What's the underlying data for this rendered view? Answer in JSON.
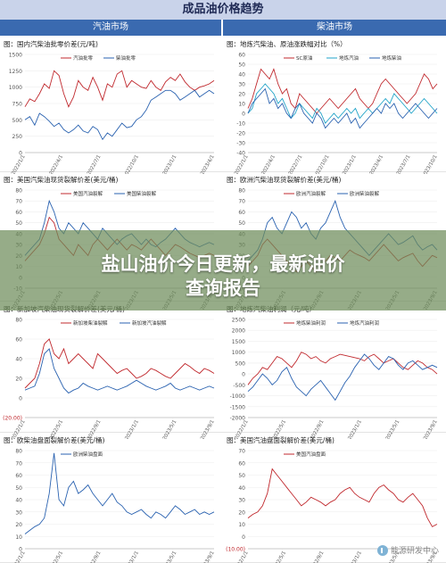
{
  "page": {
    "main_title": "成品油价格趋势",
    "left_header": "汽油市场",
    "right_header": "柴油市场",
    "banner_line1": "盐山油价今日更新，最新油价",
    "banner_line2": "查询报告",
    "watermark": "能源研发中心"
  },
  "chart_data": [
    {
      "id": "c1",
      "type": "line",
      "title": "图：国内汽柴油批零价差(元/吨)",
      "x_ticks": [
        "2022/1/1",
        "2022/4/1",
        "2022/7/1",
        "2022/10/1",
        "2023/1/1",
        "2023/4/1"
      ],
      "ylim": [
        0,
        1500
      ],
      "y_ticks": [
        0,
        250,
        500,
        750,
        1000,
        1250,
        1500
      ],
      "series": [
        {
          "name": "汽油批零",
          "color": "#c0282d",
          "values": [
            700,
            820,
            780,
            900,
            1050,
            980,
            1250,
            1180,
            900,
            700,
            850,
            1100,
            1000,
            950,
            1150,
            1000,
            800,
            1050,
            1000,
            1200,
            1250,
            1000,
            1100,
            1050,
            1000,
            980,
            1100,
            1000,
            950,
            1080,
            1150,
            1100,
            1200,
            1080,
            1000,
            950,
            1000,
            1020,
            1050,
            1100
          ]
        },
        {
          "name": "柴油批零",
          "color": "#2a62b0",
          "values": [
            500,
            550,
            420,
            600,
            550,
            480,
            400,
            450,
            350,
            300,
            350,
            420,
            330,
            300,
            400,
            350,
            200,
            300,
            250,
            350,
            450,
            380,
            400,
            500,
            550,
            650,
            800,
            850,
            900,
            950,
            950,
            900,
            800,
            850,
            900,
            950,
            850,
            900,
            950,
            900
          ]
        }
      ]
    },
    {
      "id": "c2",
      "type": "line",
      "title": "图：地炼汽柴油、原油涨跌幅对比（%）",
      "x_ticks": [
        "2022/1/1",
        "2022/4/1",
        "2022/7/1",
        "2022/10/1",
        "2023/1/1",
        "2023/4/1",
        "2023/7/1",
        "2023/10/1"
      ],
      "ylim": [
        -40,
        60
      ],
      "y_ticks": [
        60,
        50,
        40,
        30,
        20,
        10,
        0,
        -10,
        -20,
        -30,
        -40
      ],
      "series": [
        {
          "name": "SC原油",
          "color": "#c0282d",
          "values": [
            5,
            15,
            30,
            45,
            40,
            35,
            45,
            30,
            20,
            25,
            10,
            5,
            20,
            15,
            10,
            5,
            0,
            5,
            10,
            15,
            10,
            5,
            10,
            15,
            20,
            25,
            15,
            10,
            5,
            10,
            20,
            30,
            35,
            30,
            25,
            20,
            15,
            10,
            15,
            20,
            30,
            40,
            35,
            25,
            30
          ]
        },
        {
          "name": "地炼汽油",
          "color": "#1fa3c8",
          "values": [
            0,
            5,
            20,
            25,
            30,
            25,
            20,
            10,
            15,
            5,
            -5,
            0,
            10,
            5,
            0,
            -5,
            5,
            0,
            -10,
            -5,
            0,
            -5,
            0,
            5,
            0,
            5,
            -5,
            0,
            5,
            0,
            5,
            10,
            15,
            10,
            20,
            15,
            10,
            5,
            0,
            5,
            10,
            15,
            10,
            5,
            0
          ]
        },
        {
          "name": "地炼柴油",
          "color": "#2a62b0",
          "values": [
            0,
            10,
            15,
            20,
            25,
            10,
            15,
            5,
            10,
            0,
            -5,
            5,
            10,
            0,
            -5,
            -10,
            0,
            -5,
            -15,
            -10,
            -5,
            -10,
            -5,
            0,
            -10,
            -5,
            -15,
            -10,
            -5,
            0,
            5,
            0,
            10,
            5,
            10,
            0,
            -5,
            0,
            5,
            10,
            5,
            0,
            -5,
            0,
            5
          ]
        }
      ]
    },
    {
      "id": "c3",
      "type": "line",
      "title": "图：美国汽柴油现货裂解价差(美元/桶)",
      "x_ticks": [
        "2022/1/1",
        "2022/5/1",
        "2022/9/1",
        "2023/1/1",
        "2023/5/1",
        "2023/9/1"
      ],
      "ylim": [
        -10,
        80
      ],
      "y_ticks": [
        80,
        70,
        60,
        50,
        40,
        30,
        20,
        10,
        0,
        -10
      ],
      "series": [
        {
          "name": "美国汽油裂解",
          "color": "#c0282d",
          "values": [
            15,
            20,
            25,
            30,
            40,
            55,
            50,
            35,
            30,
            25,
            20,
            30,
            25,
            20,
            30,
            35,
            30,
            25,
            30,
            35,
            30,
            25,
            30,
            28,
            25,
            30,
            35,
            30,
            25,
            20,
            25,
            30,
            28,
            25,
            22,
            20,
            18,
            20,
            22,
            20
          ]
        },
        {
          "name": "美国柴油裂解",
          "color": "#2a62b0",
          "values": [
            20,
            25,
            30,
            35,
            50,
            70,
            60,
            45,
            40,
            50,
            45,
            40,
            50,
            45,
            40,
            35,
            45,
            40,
            35,
            30,
            35,
            38,
            40,
            35,
            30,
            35,
            30,
            28,
            32,
            35,
            40,
            45,
            40,
            35,
            32,
            30,
            28,
            30,
            32,
            30
          ]
        }
      ]
    },
    {
      "id": "c4",
      "type": "line",
      "title": "图：欧洲汽柴油现货裂解价差(美元/桶)",
      "x_ticks": [
        "2022/1/1",
        "2022/5/1",
        "2022/9/1",
        "2023/1/1",
        "2023/5/1",
        "2023/9/1"
      ],
      "ylim": [
        -10,
        80
      ],
      "y_ticks": [
        80,
        70,
        60,
        50,
        40,
        30,
        20,
        10,
        0,
        -10
      ],
      "series": [
        {
          "name": "欧洲汽油裂解",
          "color": "#c0282d",
          "values": [
            10,
            15,
            20,
            30,
            35,
            30,
            25,
            20,
            15,
            10,
            5,
            10,
            15,
            10,
            5,
            10,
            15,
            20,
            18,
            15,
            20,
            25,
            22,
            20,
            18,
            15,
            20,
            25,
            30,
            25,
            20,
            15,
            18,
            20,
            22,
            15,
            10,
            15,
            20,
            18
          ]
        },
        {
          "name": "欧洲柴油裂解",
          "color": "#2a62b0",
          "values": [
            15,
            20,
            25,
            35,
            50,
            55,
            45,
            40,
            50,
            60,
            55,
            45,
            50,
            40,
            35,
            45,
            50,
            60,
            70,
            55,
            45,
            40,
            35,
            30,
            25,
            20,
            25,
            30,
            35,
            40,
            35,
            30,
            32,
            35,
            38,
            30,
            25,
            28,
            30,
            25
          ]
        }
      ]
    },
    {
      "id": "c5",
      "type": "line",
      "title": "图：新加坡汽柴油现货裂解价差(美元/桶)",
      "x_ticks": [
        "2022/1/1",
        "2022/5/1",
        "2022/9/1",
        "2023/1/1",
        "2023/5/1",
        "2023/9/1"
      ],
      "ylim": [
        -20,
        80
      ],
      "y_ticks": [
        80,
        60,
        40,
        20,
        0,
        "(20.00)"
      ],
      "series": [
        {
          "name": "新加坡柴油裂解",
          "color": "#c0282d",
          "values": [
            10,
            15,
            20,
            35,
            55,
            60,
            45,
            40,
            50,
            35,
            40,
            45,
            40,
            35,
            30,
            45,
            40,
            35,
            30,
            25,
            28,
            30,
            25,
            20,
            22,
            25,
            30,
            28,
            25,
            22,
            20,
            25,
            30,
            35,
            32,
            28,
            25,
            30,
            28,
            25
          ]
        },
        {
          "name": "新加坡汽油裂解",
          "color": "#2a62b0",
          "values": [
            8,
            10,
            12,
            25,
            45,
            50,
            30,
            20,
            10,
            5,
            8,
            10,
            15,
            12,
            10,
            8,
            10,
            12,
            10,
            8,
            10,
            12,
            15,
            18,
            15,
            12,
            10,
            8,
            10,
            12,
            15,
            10,
            8,
            10,
            12,
            10,
            8,
            10,
            12,
            10
          ]
        }
      ]
    },
    {
      "id": "c6",
      "type": "line",
      "title": "图：地炼汽柴油利润（元/吨）",
      "x_ticks": [
        "2022/1/1",
        "2022/5/1",
        "2022/9/1",
        "2023/1/1",
        "2023/5/1",
        "2023/9/1"
      ],
      "ylim": [
        -2000,
        2500
      ],
      "y_ticks": [
        2500,
        2000,
        1500,
        1000,
        500,
        0,
        -500,
        -1000,
        -1500,
        -2000
      ],
      "series": [
        {
          "name": "地炼柴油利润",
          "color": "#c0282d",
          "values": [
            -500,
            -200,
            0,
            300,
            200,
            500,
            800,
            700,
            500,
            300,
            600,
            1000,
            900,
            700,
            800,
            600,
            500,
            700,
            800,
            900,
            850,
            800,
            750,
            700,
            600,
            800,
            900,
            700,
            500,
            600,
            700,
            500,
            300,
            200,
            400,
            600,
            500,
            300,
            200,
            0
          ]
        },
        {
          "name": "地炼汽油利润",
          "color": "#2a62b0",
          "values": [
            -800,
            -600,
            -300,
            0,
            -200,
            -500,
            -300,
            100,
            300,
            -200,
            -600,
            -800,
            -1000,
            -700,
            -500,
            -300,
            -600,
            -900,
            -1200,
            -800,
            -400,
            -100,
            300,
            600,
            900,
            700,
            400,
            200,
            500,
            800,
            700,
            400,
            200,
            500,
            600,
            400,
            200,
            300,
            400,
            300
          ]
        }
      ]
    },
    {
      "id": "c7",
      "type": "line",
      "title": "图：欧柴油盘面裂解价差(美元/桶)",
      "x_ticks": [
        "2022/1/1",
        "2022/5/1",
        "2022/9/1",
        "2023/1/1",
        "2023/5/1",
        "2023/9/1"
      ],
      "ylim": [
        0,
        80
      ],
      "y_ticks": [
        80,
        70,
        60,
        50,
        40,
        30,
        20,
        10,
        0
      ],
      "series": [
        {
          "name": "欧洲柴油盘面",
          "color": "#2a62b0",
          "values": [
            12,
            15,
            18,
            20,
            25,
            45,
            78,
            40,
            35,
            50,
            55,
            45,
            48,
            52,
            45,
            40,
            35,
            40,
            45,
            38,
            35,
            30,
            28,
            30,
            32,
            28,
            25,
            30,
            28,
            25,
            30,
            35,
            32,
            28,
            30,
            32,
            28,
            30,
            28,
            30
          ]
        }
      ]
    },
    {
      "id": "c8",
      "type": "line",
      "title": "图：美国汽油盘面裂解价差(美元/桶)",
      "x_ticks": [
        "2022/1/1",
        "2022/5/1",
        "2022/9/1",
        "2023/1/1",
        "2023/5/1",
        "2023/9/1"
      ],
      "ylim": [
        -10,
        70
      ],
      "y_ticks": [
        70,
        60,
        50,
        40,
        30,
        20,
        10,
        0,
        "(10.00)"
      ],
      "series": [
        {
          "name": "美国汽油盘面",
          "color": "#c0282d",
          "values": [
            15,
            18,
            20,
            25,
            35,
            55,
            50,
            45,
            40,
            35,
            30,
            25,
            28,
            32,
            30,
            28,
            25,
            28,
            30,
            35,
            38,
            40,
            35,
            32,
            30,
            28,
            35,
            40,
            42,
            38,
            35,
            30,
            28,
            32,
            35,
            30,
            25,
            15,
            8,
            10
          ]
        }
      ]
    }
  ]
}
